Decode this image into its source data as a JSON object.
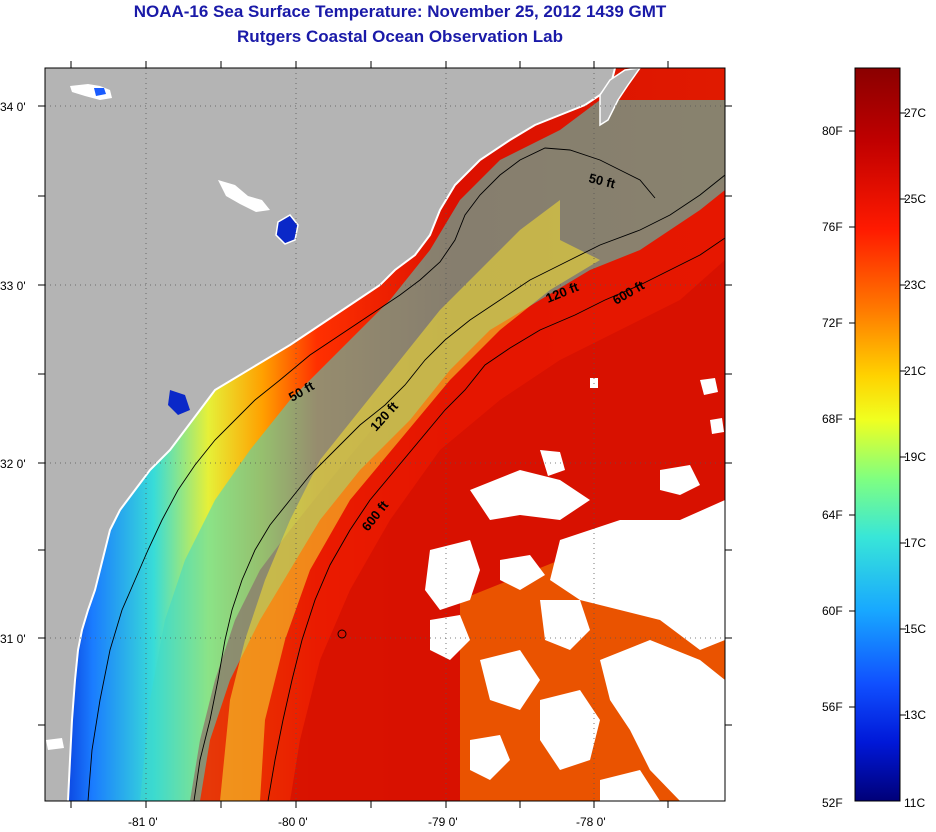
{
  "title": "NOAA-16 Sea Surface Temperature:  November 25, 2012 1439 GMT",
  "subtitle": "Rutgers Coastal Ocean Observation Lab",
  "lat_labels": [
    "34 0'",
    "33 0'",
    "32 0'",
    "31 0'"
  ],
  "lon_labels": [
    "-81 0'",
    "-80 0'",
    "-79 0'",
    "-78 0'"
  ],
  "contours": {
    "c50a": "50 ft",
    "c50b": "50 ft",
    "c120a": "120 ft",
    "c120b": "120 ft",
    "c600a": "600 ft",
    "c600b": "600 ft"
  },
  "colorbar": {
    "fahrenheit": [
      "80F",
      "76F",
      "72F",
      "68F",
      "64F",
      "60F",
      "56F",
      "52F"
    ],
    "celsius": [
      "27C",
      "25C",
      "23C",
      "21C",
      "19C",
      "17C",
      "15C",
      "13C",
      "11C"
    ],
    "colors": [
      "#8a0000",
      "#c00000",
      "#ff1a00",
      "#ff7a00",
      "#ffd200",
      "#c8ff30",
      "#38e6c8",
      "#18a8ff",
      "#1050ff",
      "#0010c0",
      "#000078"
    ]
  },
  "colors": {
    "land": "#b4b4b4",
    "cloud": "#ffffff",
    "title_text": "#1a1aa8"
  }
}
